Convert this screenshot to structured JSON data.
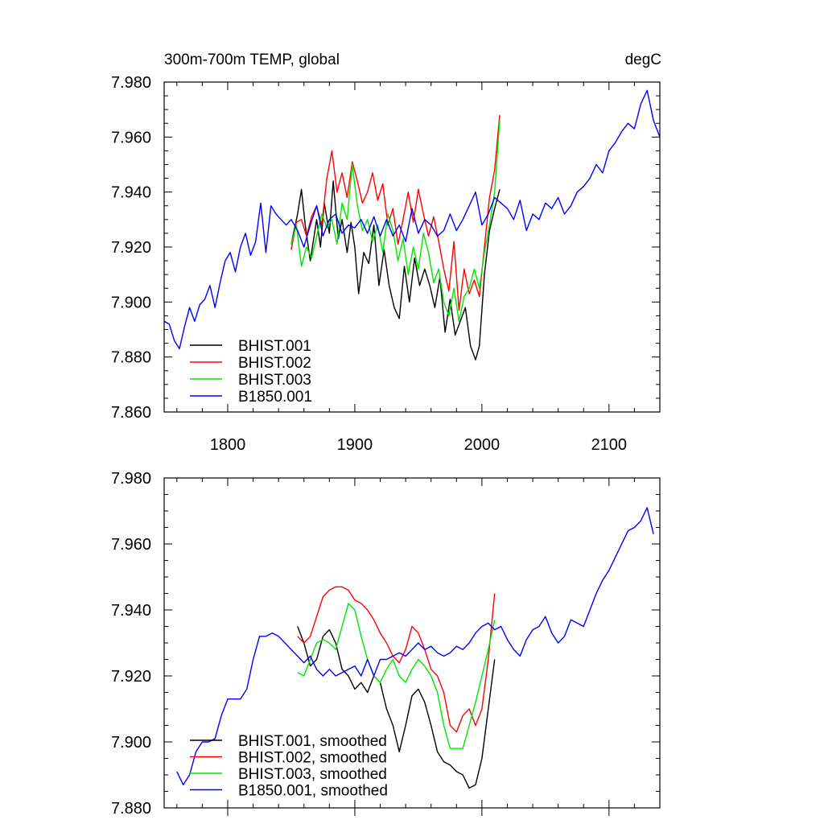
{
  "chart_data": [
    {
      "type": "line",
      "title": "300m-700m TEMP, global",
      "units": "degC",
      "xlim": [
        1750,
        2140
      ],
      "ylim": [
        7.86,
        7.98
      ],
      "xticks": [
        1800,
        1900,
        2000,
        2100
      ],
      "yticks": [
        7.86,
        7.88,
        7.9,
        7.92,
        7.94,
        7.96,
        7.98
      ],
      "ytick_labels": [
        "7.860",
        "7.880",
        "7.900",
        "7.920",
        "7.940",
        "7.960",
        "7.980"
      ],
      "xtick_labels": [
        "1800",
        "1900",
        "2000",
        "2100"
      ],
      "grid": false,
      "legend_position": "bottom-left",
      "series": [
        {
          "name": "BHIST.001",
          "color": "#000000",
          "x": [
            1850,
            1855,
            1858,
            1861,
            1865,
            1870,
            1873,
            1876,
            1880,
            1883,
            1887,
            1890,
            1894,
            1897,
            1900,
            1903,
            1907,
            1911,
            1915,
            1919,
            1923,
            1927,
            1931,
            1935,
            1939,
            1943,
            1947,
            1951,
            1955,
            1959,
            1963,
            1967,
            1971,
            1975,
            1979,
            1983,
            1987,
            1991,
            1995,
            1998,
            2002,
            2006,
            2010,
            2014
          ],
          "y": [
            7.921,
            7.932,
            7.941,
            7.928,
            7.915,
            7.93,
            7.92,
            7.936,
            7.925,
            7.944,
            7.923,
            7.93,
            7.918,
            7.929,
            7.92,
            7.903,
            7.918,
            7.914,
            7.928,
            7.906,
            7.919,
            7.906,
            7.898,
            7.894,
            7.913,
            7.9,
            7.916,
            7.906,
            7.912,
            7.906,
            7.898,
            7.909,
            7.889,
            7.901,
            7.888,
            7.893,
            7.898,
            7.884,
            7.879,
            7.884,
            7.91,
            7.926,
            7.934,
            7.941
          ]
        },
        {
          "name": "BHIST.002",
          "color": "#ff0000",
          "x": [
            1850,
            1854,
            1858,
            1862,
            1866,
            1870,
            1874,
            1878,
            1882,
            1886,
            1890,
            1894,
            1898,
            1902,
            1906,
            1910,
            1914,
            1918,
            1922,
            1926,
            1930,
            1934,
            1938,
            1942,
            1946,
            1950,
            1954,
            1958,
            1962,
            1966,
            1970,
            1974,
            1978,
            1982,
            1986,
            1990,
            1994,
            1998,
            2002,
            2006,
            2010,
            2014
          ],
          "y": [
            7.919,
            7.929,
            7.93,
            7.924,
            7.931,
            7.935,
            7.928,
            7.945,
            7.955,
            7.94,
            7.947,
            7.938,
            7.951,
            7.944,
            7.936,
            7.94,
            7.947,
            7.937,
            7.943,
            7.928,
            7.934,
            7.921,
            7.93,
            7.94,
            7.929,
            7.941,
            7.932,
            7.924,
            7.931,
            7.922,
            7.912,
            7.904,
            7.922,
            7.897,
            7.912,
            7.903,
            7.908,
            7.902,
            7.92,
            7.938,
            7.948,
            7.968
          ]
        },
        {
          "name": "BHIST.003",
          "color": "#00e600",
          "x": [
            1850,
            1854,
            1858,
            1862,
            1866,
            1870,
            1874,
            1878,
            1882,
            1886,
            1890,
            1894,
            1898,
            1902,
            1906,
            1910,
            1914,
            1918,
            1922,
            1926,
            1930,
            1934,
            1938,
            1942,
            1946,
            1950,
            1954,
            1958,
            1962,
            1966,
            1970,
            1974,
            1978,
            1982,
            1986,
            1990,
            1994,
            1998,
            2002,
            2006,
            2010,
            2014
          ],
          "y": [
            7.921,
            7.928,
            7.913,
            7.92,
            7.916,
            7.924,
            7.932,
            7.927,
            7.93,
            7.921,
            7.936,
            7.93,
            7.95,
            7.935,
            7.926,
            7.93,
            7.922,
            7.928,
            7.918,
            7.932,
            7.926,
            7.915,
            7.923,
            7.91,
            7.92,
            7.912,
            7.925,
            7.918,
            7.907,
            7.912,
            7.9,
            7.895,
            7.905,
            7.893,
            7.902,
            7.905,
            7.912,
            7.905,
            7.918,
            7.928,
            7.94,
            7.966
          ]
        },
        {
          "name": "B1850.001",
          "color": "#0000ff",
          "x": [
            1750,
            1754,
            1758,
            1762,
            1766,
            1770,
            1774,
            1778,
            1782,
            1786,
            1790,
            1794,
            1798,
            1802,
            1806,
            1810,
            1814,
            1818,
            1822,
            1826,
            1830,
            1834,
            1838,
            1842,
            1846,
            1850,
            1855,
            1860,
            1865,
            1870,
            1875,
            1880,
            1885,
            1890,
            1895,
            1900,
            1905,
            1910,
            1915,
            1920,
            1925,
            1930,
            1935,
            1940,
            1945,
            1950,
            1955,
            1960,
            1965,
            1970,
            1975,
            1980,
            1985,
            1990,
            1995,
            2000,
            2005,
            2010,
            2015,
            2020,
            2025,
            2030,
            2035,
            2040,
            2045,
            2050,
            2055,
            2060,
            2065,
            2070,
            2075,
            2080,
            2085,
            2090,
            2095,
            2100,
            2105,
            2110,
            2115,
            2120,
            2125,
            2130,
            2135,
            2140
          ],
          "y": [
            7.893,
            7.892,
            7.886,
            7.883,
            7.891,
            7.898,
            7.893,
            7.899,
            7.901,
            7.906,
            7.898,
            7.907,
            7.915,
            7.918,
            7.911,
            7.92,
            7.925,
            7.917,
            7.922,
            7.936,
            7.918,
            7.935,
            7.932,
            7.93,
            7.928,
            7.93,
            7.926,
            7.92,
            7.928,
            7.935,
            7.924,
            7.93,
            7.932,
            7.925,
            7.928,
            7.927,
            7.93,
            7.925,
            7.931,
            7.924,
            7.93,
            7.924,
            7.928,
            7.922,
            7.934,
            7.925,
            7.93,
            7.928,
            7.924,
            7.926,
            7.932,
            7.926,
            7.93,
            7.935,
            7.94,
            7.928,
            7.932,
            7.938,
            7.936,
            7.934,
            7.93,
            7.937,
            7.926,
            7.932,
            7.93,
            7.936,
            7.934,
            7.938,
            7.932,
            7.935,
            7.94,
            7.942,
            7.945,
            7.95,
            7.947,
            7.955,
            7.958,
            7.962,
            7.965,
            7.963,
            7.972,
            7.977,
            7.966,
            7.96
          ]
        }
      ]
    },
    {
      "type": "line",
      "title": "",
      "units": "",
      "xlim": [
        1750,
        2140
      ],
      "ylim": [
        7.88,
        7.98
      ],
      "xticks": [
        1800,
        1900,
        2000,
        2100
      ],
      "yticks": [
        7.88,
        7.9,
        7.92,
        7.94,
        7.96,
        7.98
      ],
      "ytick_labels": [
        "7.880",
        "7.900",
        "7.920",
        "7.940",
        "7.960",
        "7.980"
      ],
      "xtick_labels": [],
      "grid": false,
      "legend_position": "bottom-left",
      "series": [
        {
          "name": "BHIST.001, smoothed",
          "color": "#000000",
          "x": [
            1855,
            1860,
            1865,
            1870,
            1875,
            1880,
            1885,
            1890,
            1895,
            1900,
            1905,
            1910,
            1915,
            1920,
            1925,
            1930,
            1935,
            1940,
            1945,
            1950,
            1955,
            1960,
            1965,
            1970,
            1975,
            1980,
            1985,
            1990,
            1995,
            2000,
            2005,
            2010
          ],
          "y": [
            7.935,
            7.93,
            7.923,
            7.925,
            7.932,
            7.934,
            7.93,
            7.922,
            7.92,
            7.916,
            7.918,
            7.915,
            7.92,
            7.918,
            7.91,
            7.905,
            7.897,
            7.905,
            7.914,
            7.916,
            7.912,
            7.905,
            7.897,
            7.894,
            7.893,
            7.891,
            7.89,
            7.886,
            7.887,
            7.895,
            7.91,
            7.925
          ]
        },
        {
          "name": "BHIST.002, smoothed",
          "color": "#ff0000",
          "x": [
            1855,
            1860,
            1865,
            1870,
            1875,
            1880,
            1885,
            1890,
            1895,
            1900,
            1905,
            1910,
            1915,
            1920,
            1925,
            1930,
            1935,
            1940,
            1945,
            1950,
            1955,
            1960,
            1965,
            1970,
            1975,
            1980,
            1985,
            1990,
            1995,
            2000,
            2005,
            2010
          ],
          "y": [
            7.932,
            7.93,
            7.932,
            7.938,
            7.944,
            7.946,
            7.947,
            7.947,
            7.946,
            7.943,
            7.942,
            7.94,
            7.937,
            7.933,
            7.93,
            7.926,
            7.924,
            7.928,
            7.935,
            7.933,
            7.928,
            7.922,
            7.92,
            7.915,
            7.905,
            7.903,
            7.908,
            7.91,
            7.905,
            7.91,
            7.925,
            7.945
          ]
        },
        {
          "name": "BHIST.003, smoothed",
          "color": "#00e600",
          "x": [
            1855,
            1860,
            1865,
            1870,
            1875,
            1880,
            1885,
            1890,
            1895,
            1900,
            1905,
            1910,
            1915,
            1920,
            1925,
            1930,
            1935,
            1940,
            1945,
            1950,
            1955,
            1960,
            1965,
            1970,
            1975,
            1980,
            1985,
            1990,
            1995,
            2000,
            2005,
            2010
          ],
          "y": [
            7.921,
            7.92,
            7.925,
            7.93,
            7.931,
            7.93,
            7.928,
            7.935,
            7.942,
            7.94,
            7.932,
            7.925,
            7.92,
            7.918,
            7.922,
            7.925,
            7.92,
            7.918,
            7.922,
            7.925,
            7.923,
            7.92,
            7.915,
            7.905,
            7.898,
            7.898,
            7.898,
            7.905,
            7.912,
            7.92,
            7.928,
            7.937
          ]
        },
        {
          "name": "B1850.001, smoothed",
          "color": "#0000ff",
          "x": [
            1760,
            1765,
            1770,
            1775,
            1780,
            1785,
            1790,
            1795,
            1800,
            1805,
            1810,
            1815,
            1820,
            1825,
            1830,
            1835,
            1840,
            1845,
            1850,
            1855,
            1860,
            1865,
            1870,
            1875,
            1880,
            1885,
            1890,
            1895,
            1900,
            1905,
            1910,
            1915,
            1920,
            1925,
            1930,
            1935,
            1940,
            1945,
            1950,
            1955,
            1960,
            1965,
            1970,
            1975,
            1980,
            1985,
            1990,
            1995,
            2000,
            2005,
            2010,
            2015,
            2020,
            2025,
            2030,
            2035,
            2040,
            2045,
            2050,
            2055,
            2060,
            2065,
            2070,
            2075,
            2080,
            2085,
            2090,
            2095,
            2100,
            2105,
            2110,
            2115,
            2120,
            2125,
            2130,
            2135
          ],
          "y": [
            7.891,
            7.887,
            7.89,
            7.897,
            7.9,
            7.9,
            7.901,
            7.908,
            7.913,
            7.913,
            7.913,
            7.916,
            7.925,
            7.932,
            7.932,
            7.933,
            7.932,
            7.93,
            7.928,
            7.926,
            7.924,
            7.926,
            7.922,
            7.92,
            7.922,
            7.92,
            7.921,
            7.922,
            7.923,
            7.92,
            7.925,
            7.92,
            7.925,
            7.925,
            7.926,
            7.927,
            7.926,
            7.928,
            7.93,
            7.928,
            7.929,
            7.927,
            7.926,
            7.927,
            7.929,
            7.928,
            7.93,
            7.933,
            7.935,
            7.936,
            7.934,
            7.935,
            7.931,
            7.928,
            7.926,
            7.931,
            7.934,
            7.935,
            7.938,
            7.933,
            7.93,
            7.932,
            7.937,
            7.936,
            7.935,
            7.94,
            7.945,
            7.949,
            7.952,
            7.956,
            7.96,
            7.964,
            7.965,
            7.967,
            7.971,
            7.963
          ]
        }
      ]
    }
  ]
}
